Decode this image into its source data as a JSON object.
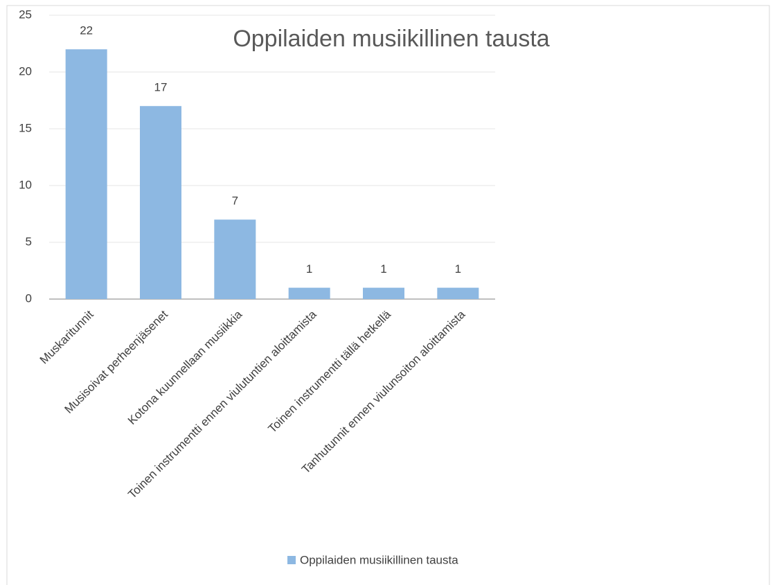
{
  "chart_data": {
    "type": "bar",
    "title": "Oppilaiden musiikillinen tausta",
    "categories": [
      "Muskaritunnit",
      "Musisoivat perheenjäsenet",
      "Kotona kuunnellaan musiikkia",
      "Toinen instrumentti ennen viulutuntien aloittamista",
      "Toinen instrumentti tällä hetkellä",
      "Tanhutunnit ennen viulunsoiton aloittamista"
    ],
    "series": [
      {
        "name": "Oppilaiden musiikillinen tausta",
        "color": "#8db8e2",
        "values": [
          22,
          17,
          7,
          1,
          1,
          1
        ]
      }
    ],
    "ylim": [
      0,
      25
    ],
    "yticks": [
      0,
      5,
      10,
      15,
      20,
      25
    ],
    "grid": true,
    "legend": "bottom"
  }
}
